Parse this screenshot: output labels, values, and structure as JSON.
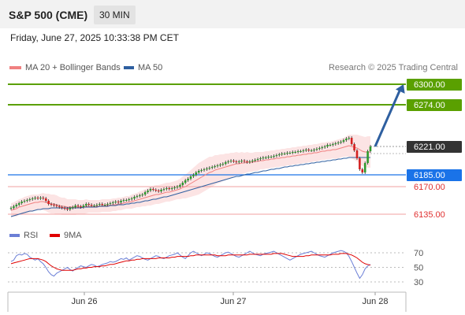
{
  "header": {
    "title": "S&P 500 (CME)",
    "timeframe": "30 MIN",
    "date": "Friday, June 27, 2025 10:33:38 PM CET",
    "credit": "Research © 2025 Trading Central"
  },
  "legend": {
    "ma20_label": "MA 20 + Bollinger Bands",
    "ma20_color": "#f08080",
    "ma50_label": "MA 50",
    "ma50_color": "#2e5fa0",
    "rsi_label": "RSI",
    "rsi_color": "#6b7fd6",
    "rsi9_label": "9MA",
    "rsi9_color": "#e00000"
  },
  "chart_data": [
    {
      "type": "candlestick",
      "title": "S&P 500 (CME)",
      "interval": "30 MIN",
      "ylim": [
        6125,
        6305
      ],
      "x_ticks": [
        "Jun 26",
        "Jun 27",
        "Jun 28"
      ],
      "last_price": 6221.0,
      "levels": [
        {
          "label": "6300.00",
          "value": 6300.0,
          "style": "resistance",
          "color": "#5aa000"
        },
        {
          "label": "6274.00",
          "value": 6274.0,
          "style": "resistance",
          "color": "#5aa000"
        },
        {
          "label": "6221.00",
          "value": 6221.0,
          "style": "last",
          "color": "#333333"
        },
        {
          "label": "6185.00",
          "value": 6185.0,
          "style": "pivot",
          "color": "#1a73e8"
        },
        {
          "label": "6170.00",
          "value": 6170.0,
          "style": "support",
          "color": "#e05050"
        },
        {
          "label": "6135.00",
          "value": 6135.0,
          "style": "support",
          "color": "#e05050"
        }
      ],
      "close": [
        6143,
        6145,
        6147,
        6149,
        6151,
        6152,
        6153,
        6154,
        6155,
        6156,
        6155,
        6156,
        6155,
        6152,
        6148,
        6147,
        6146,
        6145,
        6144,
        6143,
        6142,
        6141,
        6143,
        6144,
        6146,
        6145,
        6144,
        6146,
        6148,
        6147,
        6146,
        6146,
        6147,
        6148,
        6147,
        6147,
        6148,
        6149,
        6150,
        6151,
        6150,
        6152,
        6153,
        6153,
        6154,
        6155,
        6157,
        6158,
        6159,
        6160,
        6163,
        6165,
        6167,
        6166,
        6165,
        6164,
        6166,
        6167,
        6168,
        6167,
        6168,
        6169,
        6170,
        6172,
        6175,
        6178,
        6180,
        6183,
        6185,
        6188,
        6190,
        6191,
        6192,
        6193,
        6194,
        6195,
        6196,
        6197,
        6198,
        6199,
        6201,
        6202,
        6203,
        6202,
        6201,
        6202,
        6203,
        6202,
        6201,
        6202,
        6203,
        6204,
        6205,
        6206,
        6207,
        6207,
        6208,
        6208,
        6209,
        6210,
        6211,
        6212,
        6212,
        6213,
        6213,
        6214,
        6214,
        6215,
        6215,
        6216,
        6217,
        6216,
        6216,
        6217,
        6218,
        6219,
        6220,
        6221,
        6223,
        6223,
        6224,
        6225,
        6226,
        6227,
        6229,
        6231,
        6232,
        6224,
        6216,
        6206,
        6192,
        6188,
        6200,
        6215,
        6221
      ],
      "ma20": [
        6140,
        6141,
        6142,
        6144,
        6145,
        6146,
        6147,
        6148,
        6149,
        6150,
        6150,
        6151,
        6151,
        6150,
        6149,
        6148,
        6148,
        6147,
        6146,
        6145,
        6145,
        6144,
        6144,
        6144,
        6144,
        6144,
        6144,
        6144,
        6145,
        6145,
        6145,
        6145,
        6145,
        6145,
        6146,
        6146,
        6146,
        6146,
        6147,
        6147,
        6148,
        6148,
        6149,
        6150,
        6150,
        6151,
        6152,
        6153,
        6154,
        6155,
        6156,
        6157,
        6158,
        6159,
        6160,
        6160,
        6161,
        6162,
        6163,
        6163,
        6164,
        6165,
        6166,
        6167,
        6169,
        6170,
        6172,
        6174,
        6176,
        6178,
        6180,
        6182,
        6184,
        6186,
        6188,
        6189,
        6191,
        6192,
        6193,
        6194,
        6195,
        6196,
        6197,
        6198,
        6199,
        6199,
        6200,
        6200,
        6201,
        6201,
        6201,
        6202,
        6202,
        6203,
        6203,
        6204,
        6204,
        6205,
        6205,
        6206,
        6206,
        6207,
        6207,
        6208,
        6208,
        6209,
        6209,
        6210,
        6210,
        6211,
        6211,
        6212,
        6212,
        6213,
        6213,
        6214,
        6215,
        6215,
        6216,
        6216,
        6217,
        6217,
        6218,
        6219,
        6220,
        6221,
        6222,
        6221,
        6220,
        6219,
        6217,
        6215,
        6214,
        6214,
        6214
      ],
      "ma50": [
        6132,
        6133,
        6134,
        6135,
        6136,
        6137,
        6138,
        6139,
        6139,
        6140,
        6141,
        6141,
        6142,
        6142,
        6142,
        6143,
        6143,
        6143,
        6143,
        6143,
        6143,
        6143,
        6143,
        6143,
        6143,
        6143,
        6143,
        6144,
        6144,
        6144,
        6144,
        6144,
        6144,
        6145,
        6145,
        6145,
        6145,
        6146,
        6146,
        6146,
        6147,
        6147,
        6147,
        6148,
        6148,
        6149,
        6149,
        6150,
        6150,
        6151,
        6152,
        6152,
        6153,
        6154,
        6154,
        6155,
        6156,
        6157,
        6157,
        6158,
        6159,
        6160,
        6161,
        6162,
        6163,
        6164,
        6165,
        6166,
        6167,
        6168,
        6169,
        6170,
        6171,
        6172,
        6173,
        6174,
        6175,
        6176,
        6177,
        6178,
        6179,
        6180,
        6181,
        6182,
        6183,
        6183,
        6184,
        6185,
        6186,
        6186,
        6187,
        6188,
        6188,
        6189,
        6190,
        6190,
        6191,
        6192,
        6192,
        6193,
        6193,
        6194,
        6195,
        6195,
        6196,
        6196,
        6197,
        6197,
        6198,
        6198,
        6199,
        6199,
        6200,
        6200,
        6201,
        6201,
        6202,
        6202,
        6203,
        6203,
        6204,
        6204,
        6205,
        6205,
        6206,
        6206,
        6207,
        6207,
        6207,
        6207,
        6207,
        6207,
        6207,
        6207,
        6207
      ],
      "bb_width": [
        9,
        9,
        10,
        10,
        10,
        11,
        11,
        11,
        11,
        10,
        10,
        10,
        11,
        11,
        12,
        12,
        12,
        12,
        11,
        11,
        11,
        10,
        10,
        10,
        10,
        9,
        9,
        9,
        9,
        8,
        8,
        8,
        8,
        8,
        8,
        8,
        8,
        8,
        8,
        8,
        8,
        8,
        8,
        8,
        8,
        9,
        9,
        9,
        10,
        10,
        11,
        11,
        12,
        12,
        12,
        12,
        12,
        12,
        12,
        12,
        12,
        12,
        12,
        13,
        14,
        15,
        16,
        17,
        18,
        19,
        20,
        20,
        20,
        20,
        20,
        19,
        19,
        18,
        18,
        17,
        17,
        16,
        16,
        15,
        15,
        14,
        14,
        13,
        13,
        12,
        12,
        12,
        12,
        11,
        11,
        11,
        11,
        11,
        11,
        11,
        11,
        11,
        11,
        11,
        11,
        11,
        11,
        11,
        11,
        11,
        11,
        11,
        11,
        11,
        11,
        11,
        11,
        11,
        11,
        11,
        11,
        12,
        12,
        12,
        12,
        13,
        14,
        15,
        16,
        17,
        18,
        19,
        19,
        20,
        20
      ],
      "projection": {
        "from": 6221.0,
        "to": 6300.0
      }
    },
    {
      "type": "line",
      "title": "RSI",
      "ylim": [
        20,
        80
      ],
      "y_ticks": [
        70,
        50,
        30
      ],
      "series": [
        {
          "name": "RSI",
          "values": [
            58,
            60,
            66,
            68,
            67,
            69,
            68,
            64,
            62,
            60,
            62,
            58,
            55,
            50,
            44,
            40,
            38,
            42,
            44,
            46,
            48,
            50,
            47,
            45,
            48,
            50,
            52,
            51,
            50,
            52,
            54,
            53,
            51,
            52,
            54,
            55,
            56,
            58,
            57,
            58,
            60,
            62,
            61,
            63,
            60,
            62,
            64,
            66,
            65,
            63,
            61,
            60,
            62,
            64,
            66,
            65,
            63,
            62,
            64,
            66,
            67,
            68,
            70,
            67,
            64,
            62,
            66,
            70,
            72,
            70,
            68,
            66,
            68,
            70,
            69,
            67,
            65,
            64,
            66,
            68,
            70,
            71,
            69,
            67,
            65,
            64,
            66,
            68,
            70,
            72,
            70,
            68,
            67,
            66,
            68,
            69,
            70,
            71,
            72,
            70,
            68,
            66,
            64,
            62,
            60,
            62,
            64,
            66,
            68,
            69,
            70,
            71,
            72,
            70,
            68,
            66,
            65,
            64,
            66,
            68,
            70,
            71,
            72,
            73,
            72,
            70,
            65,
            58,
            50,
            42,
            35,
            40,
            48,
            52,
            54
          ]
        },
        {
          "name": "9MA",
          "values": [
            55,
            56,
            57,
            58,
            59,
            60,
            61,
            62,
            62,
            62,
            62,
            61,
            60,
            58,
            55,
            52,
            50,
            48,
            47,
            46,
            46,
            46,
            46,
            46,
            47,
            48,
            48,
            49,
            49,
            50,
            50,
            51,
            51,
            51,
            52,
            52,
            53,
            54,
            54,
            55,
            56,
            57,
            58,
            59,
            59,
            60,
            60,
            61,
            61,
            62,
            62,
            62,
            62,
            62,
            62,
            63,
            63,
            63,
            63,
            63,
            64,
            64,
            65,
            65,
            65,
            65,
            65,
            66,
            66,
            67,
            67,
            67,
            67,
            67,
            67,
            67,
            67,
            66,
            66,
            66,
            66,
            67,
            67,
            67,
            67,
            67,
            67,
            67,
            67,
            68,
            68,
            68,
            68,
            68,
            68,
            68,
            68,
            68,
            69,
            69,
            69,
            69,
            68,
            67,
            66,
            65,
            65,
            65,
            65,
            65,
            66,
            66,
            67,
            67,
            67,
            67,
            67,
            67,
            67,
            67,
            68,
            68,
            68,
            69,
            69,
            69,
            68,
            67,
            65,
            63,
            60,
            57,
            55,
            54,
            53
          ]
        }
      ]
    }
  ]
}
